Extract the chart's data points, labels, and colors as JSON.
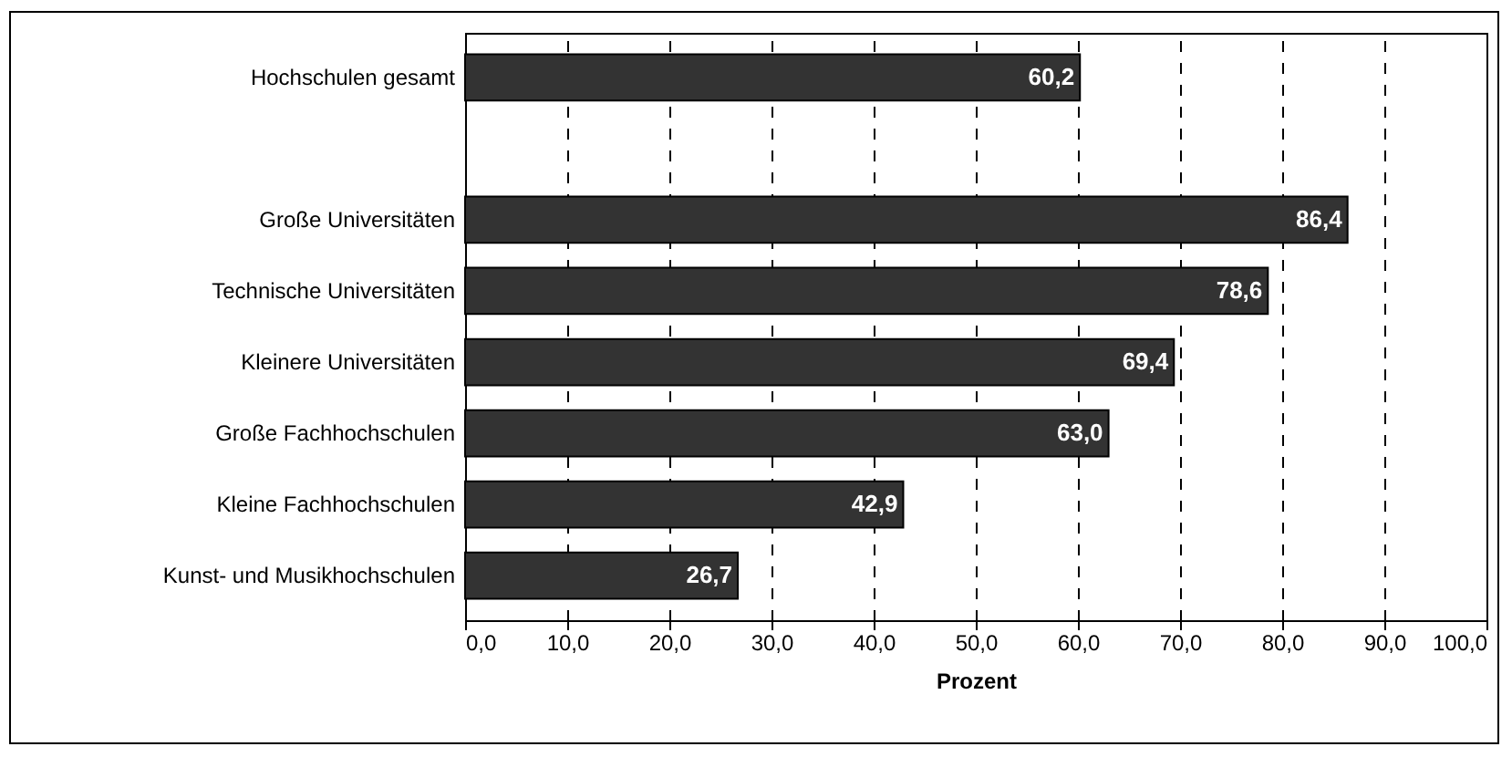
{
  "chart_data": {
    "type": "bar",
    "orientation": "horizontal",
    "xlabel": "Prozent",
    "categories": [
      "Hochschulen gesamt",
      null,
      "Große Universitäten",
      "Technische Universitäten",
      "Kleinere Universitäten",
      "Große Fachhochschulen",
      "Kleine Fachhochschulen",
      "Kunst- und Musikhochschulen"
    ],
    "values": [
      60.2,
      null,
      86.4,
      78.6,
      69.4,
      63.0,
      42.9,
      26.7
    ],
    "value_labels": [
      "60,2",
      null,
      "86,4",
      "78,6",
      "69,4",
      "63,0",
      "42,9",
      "26,7"
    ],
    "color": "#333333",
    "xlim": [
      0,
      100
    ],
    "xticks": [
      {
        "value": 0,
        "label": "0,0"
      },
      {
        "value": 10,
        "label": "10,0"
      },
      {
        "value": 20,
        "label": "20,0"
      },
      {
        "value": 30,
        "label": "30,0"
      },
      {
        "value": 40,
        "label": "40,0"
      },
      {
        "value": 50,
        "label": "50,0"
      },
      {
        "value": 60,
        "label": "60,0"
      },
      {
        "value": 70,
        "label": "70,0"
      },
      {
        "value": 80,
        "label": "80,0"
      },
      {
        "value": 90,
        "label": "90,0"
      },
      {
        "value": 100,
        "label": "100,0"
      }
    ],
    "grid": "x"
  }
}
